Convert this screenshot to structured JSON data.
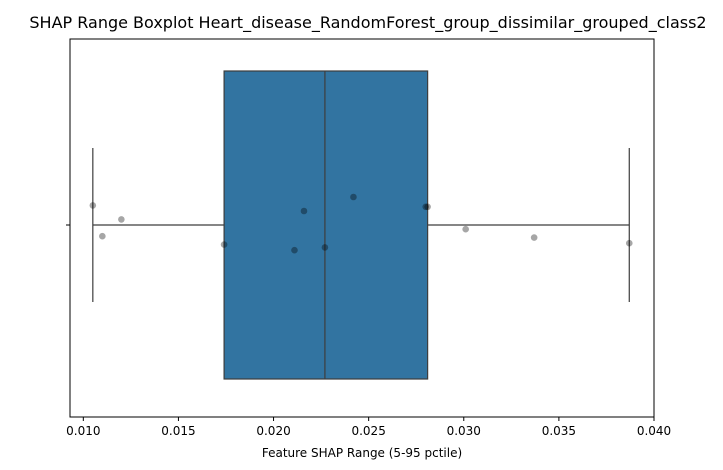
{
  "chart_data": {
    "type": "box",
    "title": "SHAP Range Boxplot Heart_disease_RandomForest_group_dissimilar_grouped_class2",
    "xlabel": "Feature SHAP Range (5-95 pctile)",
    "ylabel": "",
    "xlim": [
      0.0093,
      0.04
    ],
    "x_ticks": [
      0.01,
      0.015,
      0.02,
      0.025,
      0.03,
      0.035,
      0.04
    ],
    "x_tick_labels": [
      "0.010",
      "0.015",
      "0.020",
      "0.025",
      "0.030",
      "0.035",
      "0.040"
    ],
    "grid": false,
    "box": {
      "whisker_low": 0.0105,
      "q1": 0.0174,
      "median": 0.0227,
      "q3": 0.0281,
      "whisker_high": 0.0387,
      "color": "#3274a1"
    },
    "points": [
      {
        "x": 0.0105,
        "y": 0.14
      },
      {
        "x": 0.011,
        "y": -0.08
      },
      {
        "x": 0.012,
        "y": 0.04
      },
      {
        "x": 0.0174,
        "y": -0.14
      },
      {
        "x": 0.0211,
        "y": -0.18
      },
      {
        "x": 0.0216,
        "y": 0.1
      },
      {
        "x": 0.0227,
        "y": -0.16
      },
      {
        "x": 0.0242,
        "y": 0.2
      },
      {
        "x": 0.028,
        "y": 0.13
      },
      {
        "x": 0.0281,
        "y": 0.13
      },
      {
        "x": 0.0301,
        "y": -0.03
      },
      {
        "x": 0.0337,
        "y": -0.09
      },
      {
        "x": 0.0387,
        "y": -0.13
      }
    ]
  }
}
